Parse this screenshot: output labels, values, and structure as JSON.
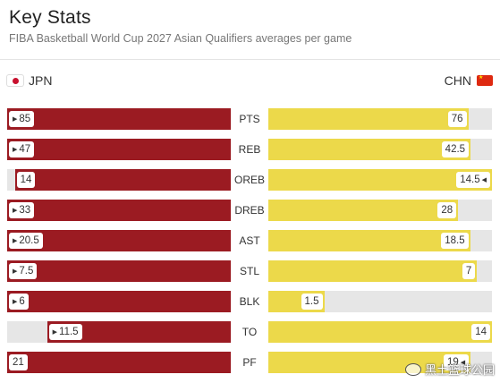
{
  "header": {
    "title": "Key Stats",
    "subtitle": "FIBA Basketball World Cup 2027 Asian Qualifiers averages per game"
  },
  "teams": {
    "left": {
      "name": "JPN",
      "flag": "japan-flag-icon"
    },
    "right": {
      "name": "CHN",
      "flag": "china-flag-icon"
    }
  },
  "colors": {
    "left_bar": "#9b1b22",
    "right_bar": "#ecd94a",
    "track": "#e6e6e6"
  },
  "stats": [
    {
      "label": "PTS",
      "left": 85,
      "right": 76,
      "leader": "left"
    },
    {
      "label": "REB",
      "left": 47,
      "right": 42.5,
      "leader": "left"
    },
    {
      "label": "OREB",
      "left": 14,
      "right": 14.5,
      "leader": "right"
    },
    {
      "label": "DREB",
      "left": 33,
      "right": 28,
      "leader": "left"
    },
    {
      "label": "AST",
      "left": 20.5,
      "right": 18.5,
      "leader": "left"
    },
    {
      "label": "STL",
      "left": 7.5,
      "right": 7,
      "leader": "left"
    },
    {
      "label": "BLK",
      "left": 6,
      "right": 1.5,
      "leader": "left"
    },
    {
      "label": "TO",
      "left": 11.5,
      "right": 14,
      "leader": "left"
    },
    {
      "label": "PF",
      "left": 21,
      "right": 19,
      "leader": "right"
    }
  ],
  "watermark": {
    "text": "黑土篮球公园"
  }
}
